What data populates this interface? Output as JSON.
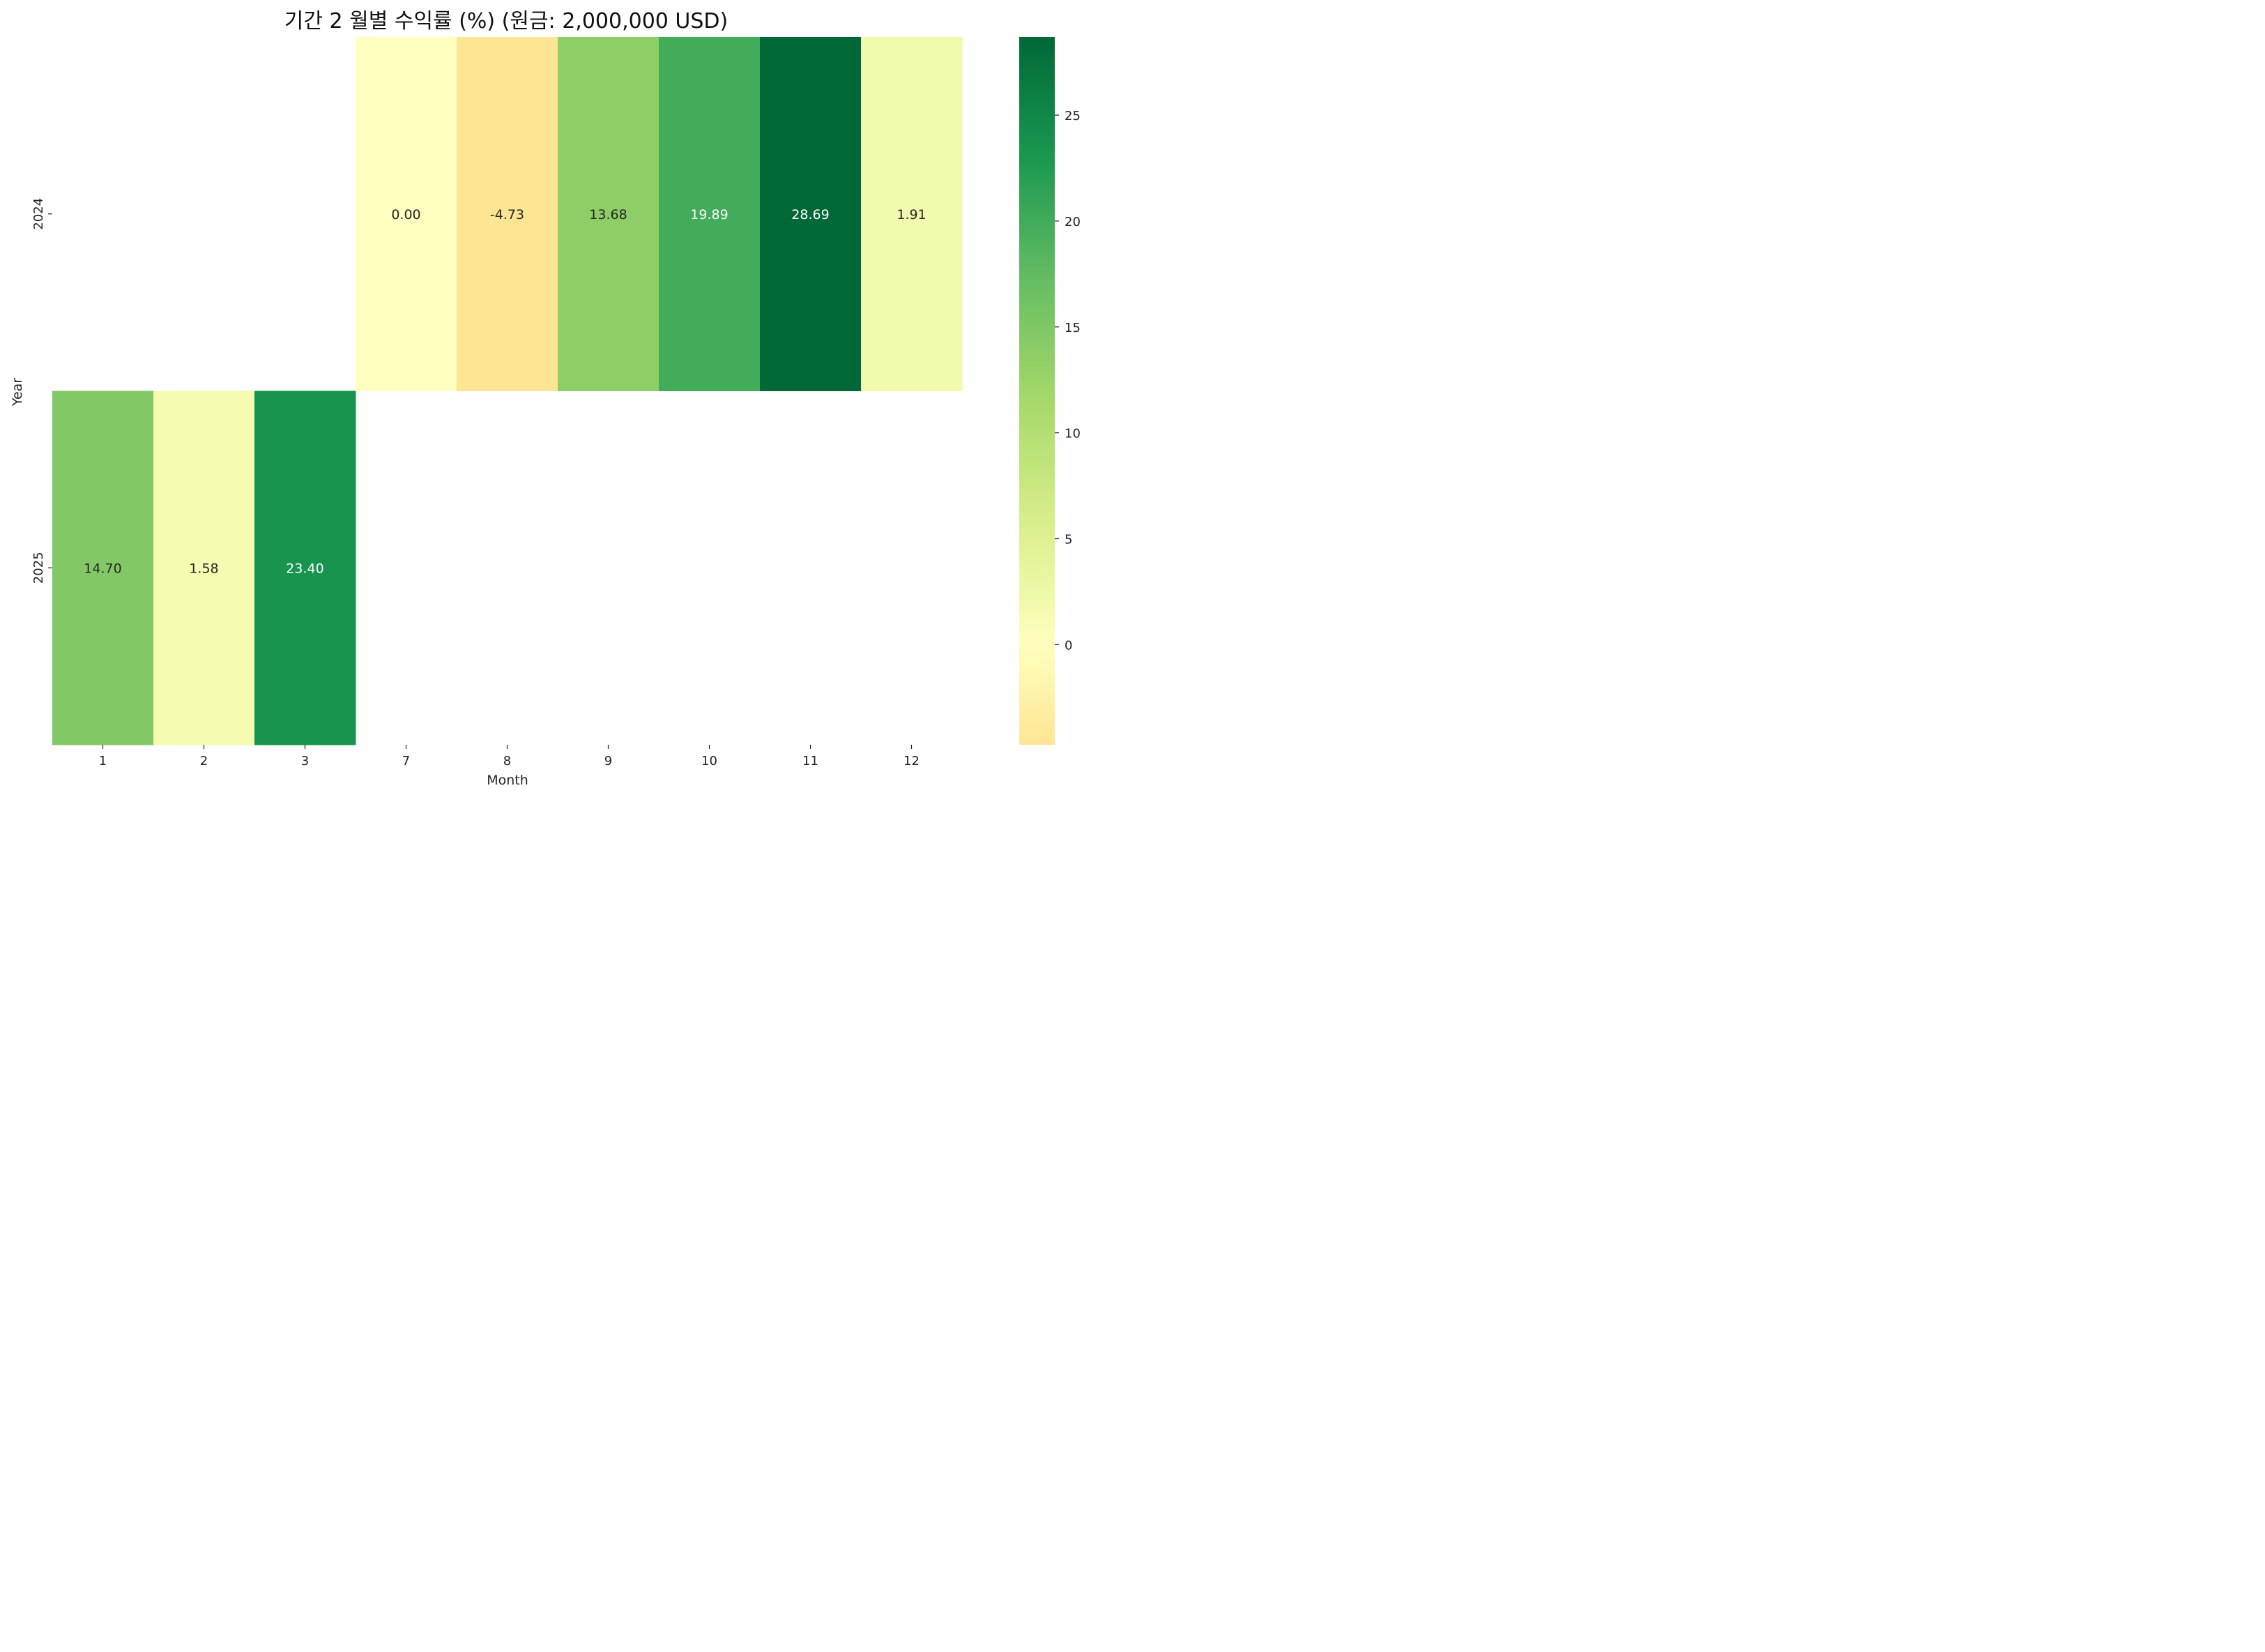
{
  "chart_data": {
    "type": "heatmap",
    "title": "기간 2 월별 수익률 (%) (원금: 2,000,000 USD)",
    "xlabel": "Month",
    "ylabel": "Year",
    "x_categories": [
      "1",
      "2",
      "3",
      "7",
      "8",
      "9",
      "10",
      "11",
      "12"
    ],
    "y_categories": [
      "2024",
      "2025"
    ],
    "values": [
      [
        null,
        null,
        null,
        0.0,
        -4.73,
        13.68,
        19.89,
        28.69,
        1.91
      ],
      [
        14.7,
        1.58,
        23.4,
        null,
        null,
        null,
        null,
        null,
        null
      ]
    ],
    "value_labels": [
      [
        "",
        "",
        "",
        "0.00",
        "-4.73",
        "13.68",
        "19.89",
        "28.69",
        "1.91"
      ],
      [
        "14.70",
        "1.58",
        "23.40",
        "",
        "",
        "",
        "",
        "",
        ""
      ]
    ],
    "colorbar": {
      "min": -4.73,
      "max": 28.69,
      "center": 0,
      "colormap": "RdYlGn",
      "ticks": [
        0,
        5,
        10,
        15,
        20,
        25
      ],
      "tick_labels": [
        "0",
        "5",
        "10",
        "15",
        "20",
        "25"
      ]
    },
    "grid": false,
    "legend": "colorbar-right"
  }
}
